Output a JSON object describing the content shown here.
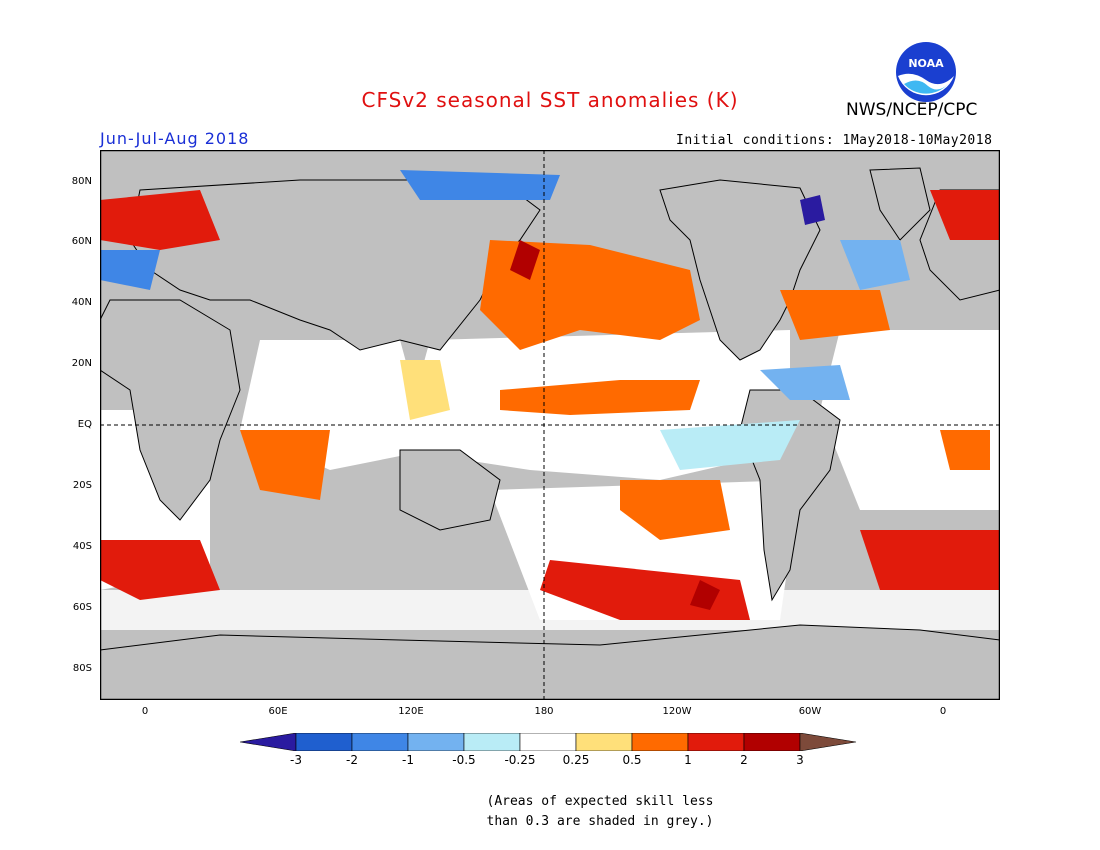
{
  "title": "CFSv2 seasonal SST anomalies (K)",
  "agency": "NWS/NCEP/CPC",
  "logo_text": "NOAA",
  "season": "Jun-Jul-Aug 2018",
  "initial_conditions": "Initial conditions: 1May2018-10May2018",
  "lat_labels": [
    "80N",
    "60N",
    "40N",
    "20N",
    "EQ",
    "20S",
    "40S",
    "60S",
    "80S"
  ],
  "lon_labels": [
    "0",
    "60E",
    "120E",
    "180",
    "120W",
    "60W",
    "0"
  ],
  "colorbar": {
    "labels": [
      "-3",
      "-2",
      "-1",
      "-0.5",
      "-0.25",
      "0.25",
      "0.5",
      "1",
      "2",
      "3"
    ],
    "colors": [
      "#2a1ba0",
      "#1f5fcf",
      "#3f86e6",
      "#73b2f0",
      "#b9ecf6",
      "#ffffff",
      "#ffe07a",
      "#ff6a00",
      "#e11b0c",
      "#b10000",
      "#7d4a3a"
    ]
  },
  "note": [
    "(Areas of expected skill less",
    "than 0.3 are shaded in grey.)"
  ],
  "colors": {
    "title": "#e01010",
    "season": "#1a2fd6",
    "land": "#c0c0c0",
    "grey_mask": "#c0c0c0",
    "ocean_neutral": "#ffffff"
  }
}
